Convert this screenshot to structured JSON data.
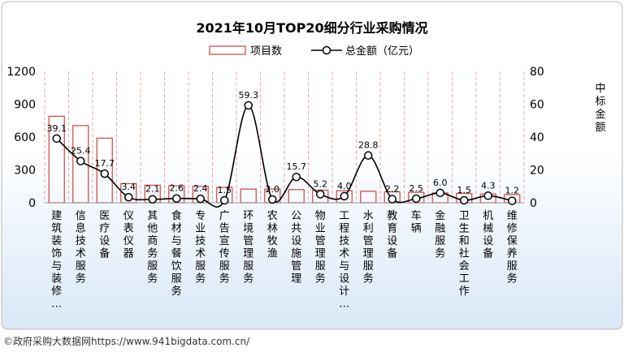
{
  "chart_data": {
    "type": "bar",
    "title": "2021年10月TOP20细分行业采购情况",
    "categories": [
      "建筑装饰与装修…",
      "信息技术服务",
      "医疗设备",
      "仪表仪器",
      "其他商务服务",
      "食材与餐饮服务",
      "专业技术服务",
      "广告宣传服务",
      "环境管理服务",
      "农林牧渔",
      "公共设施管理",
      "物业管理服务",
      "工程技术与设计…",
      "水利管理服务",
      "教育设备",
      "车辆",
      "金融服务",
      "卫生和社会工作",
      "机械设备",
      "维修保养服务"
    ],
    "series": [
      {
        "name": "项目数",
        "type": "bar",
        "axis": "left",
        "color": "#d05050",
        "values": [
          790,
          705,
          590,
          175,
          160,
          155,
          150,
          140,
          125,
          125,
          120,
          115,
          110,
          105,
          100,
          95,
          90,
          85,
          80,
          75
        ]
      },
      {
        "name": "总金额（亿元）",
        "type": "line",
        "axis": "right",
        "color": "#000000",
        "values": [
          39.1,
          25.4,
          17.7,
          3.4,
          2.1,
          2.6,
          2.4,
          1.5,
          59.3,
          2.0,
          15.7,
          5.2,
          4.0,
          28.8,
          2.2,
          2.5,
          6.0,
          1.5,
          4.3,
          1.2
        ],
        "labels": [
          "39.1",
          "25.4",
          "17.7",
          "3.4",
          "2.1",
          "2.6",
          "2.4",
          "1.5",
          "59.3",
          "2.0",
          "15.7",
          "5.2",
          "4.0",
          "28.8",
          "2.2",
          "2.5",
          "6.0",
          "1.5",
          "4.3",
          "1.2"
        ]
      }
    ],
    "ylim_left": [
      0,
      1200
    ],
    "yticks_left": [
      "0",
      "300",
      "600",
      "900",
      "1200"
    ],
    "ylim_right": [
      0,
      80
    ],
    "yticks_right": [
      "0",
      "20",
      "40",
      "60",
      "80"
    ],
    "ylabel_right": "中标金额",
    "legend_position": "top-center",
    "grid": "dashed-vertical",
    "colors": {
      "bar_edge": "#d05050",
      "line": "#000000",
      "grid": "#f0a0a0",
      "background_top": "#ffffff",
      "background_bottom": "#d9e8f7"
    }
  },
  "footer": {
    "text": "©政府采购大数据网https://www.941bigdata.com.cn/"
  }
}
